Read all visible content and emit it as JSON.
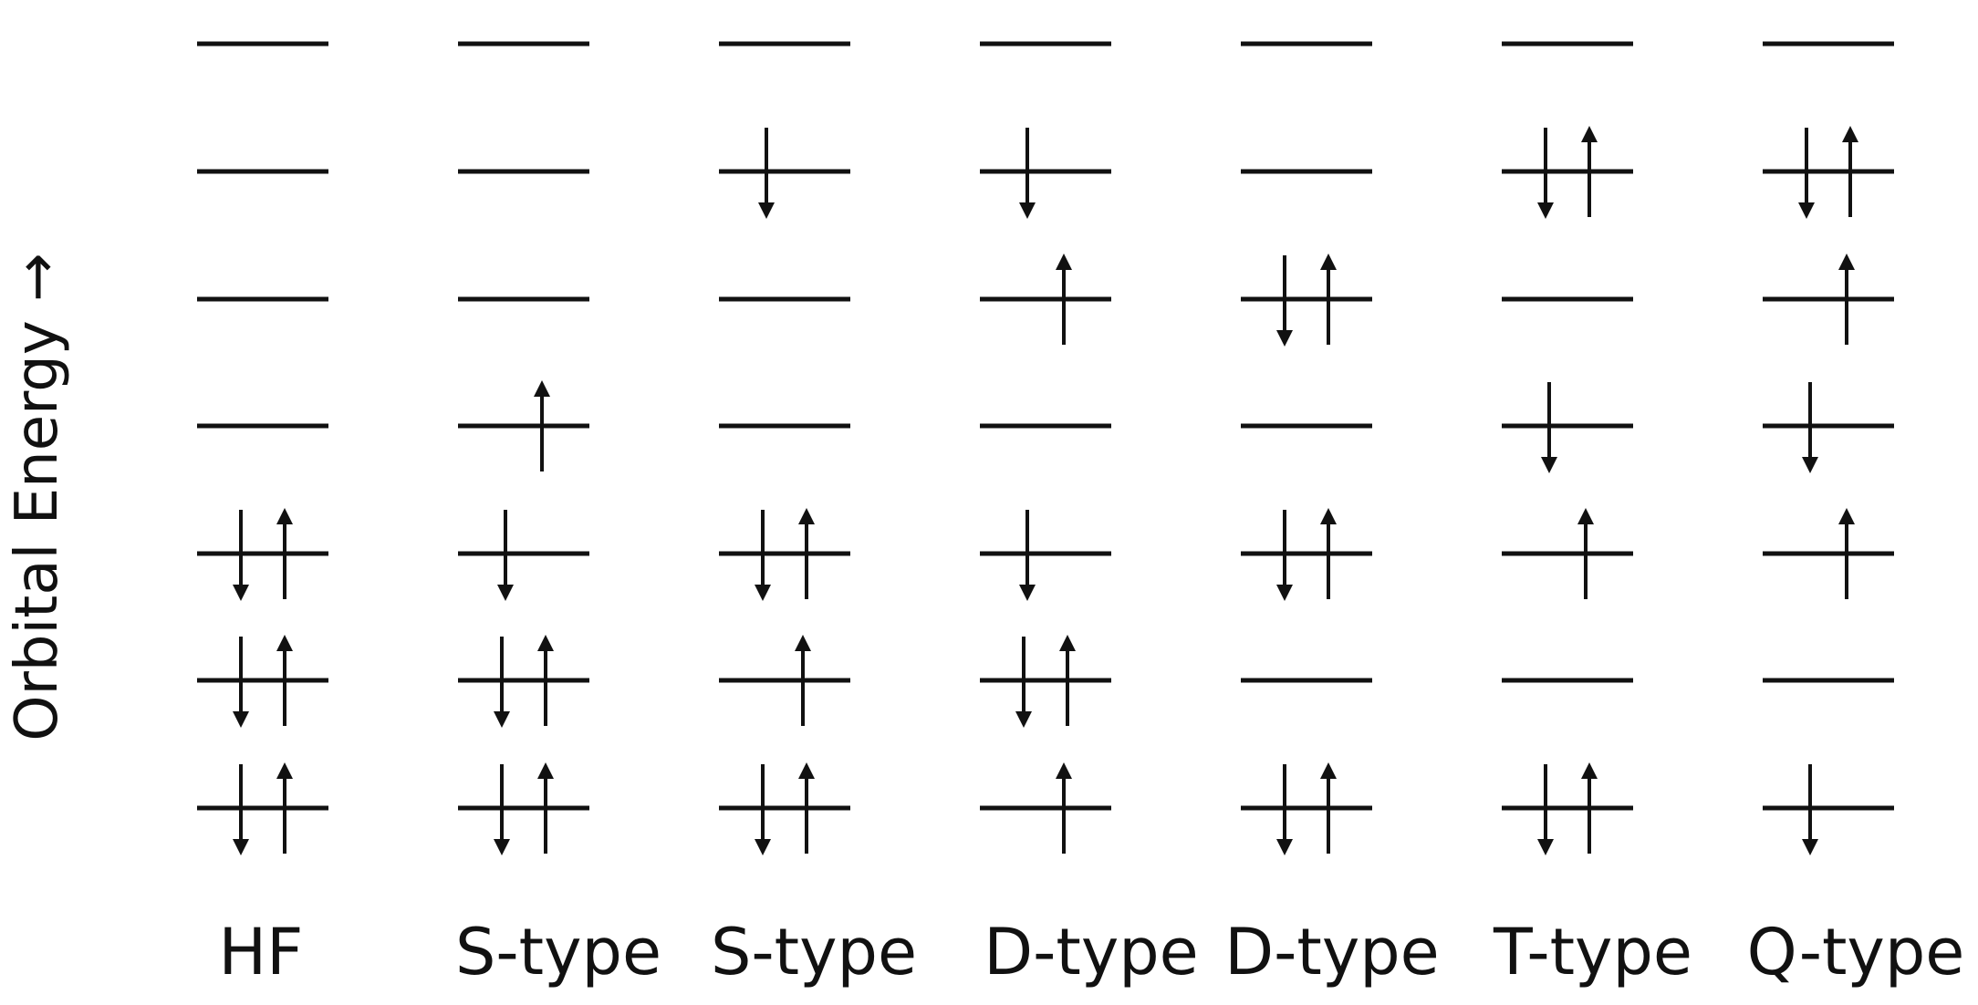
{
  "diagram": {
    "axis_label": "Orbital Energy →",
    "line_color": "#111111",
    "orbital_count": 7,
    "configurations": [
      {
        "label": "HF",
        "orbitals": [
          "",
          "",
          "",
          "",
          "ud",
          "ud",
          "ud"
        ]
      },
      {
        "label": "S-type",
        "orbitals": [
          "",
          "",
          "",
          "u",
          "d",
          "ud",
          "ud"
        ]
      },
      {
        "label": "S-type",
        "orbitals": [
          "",
          "d",
          "",
          "",
          "ud",
          "u",
          "ud"
        ]
      },
      {
        "label": "D-type",
        "orbitals": [
          "",
          "d",
          "u",
          "",
          "d",
          "ud",
          "u"
        ]
      },
      {
        "label": "D-type",
        "orbitals": [
          "",
          "",
          "ud",
          "",
          "ud",
          "",
          "ud"
        ]
      },
      {
        "label": "T-type",
        "orbitals": [
          "",
          "ud",
          "",
          "d",
          "u",
          "",
          "ud"
        ]
      },
      {
        "label": "Q-type",
        "orbitals": [
          "",
          "ud",
          "u",
          "d",
          "u",
          "",
          "d"
        ]
      }
    ]
  }
}
